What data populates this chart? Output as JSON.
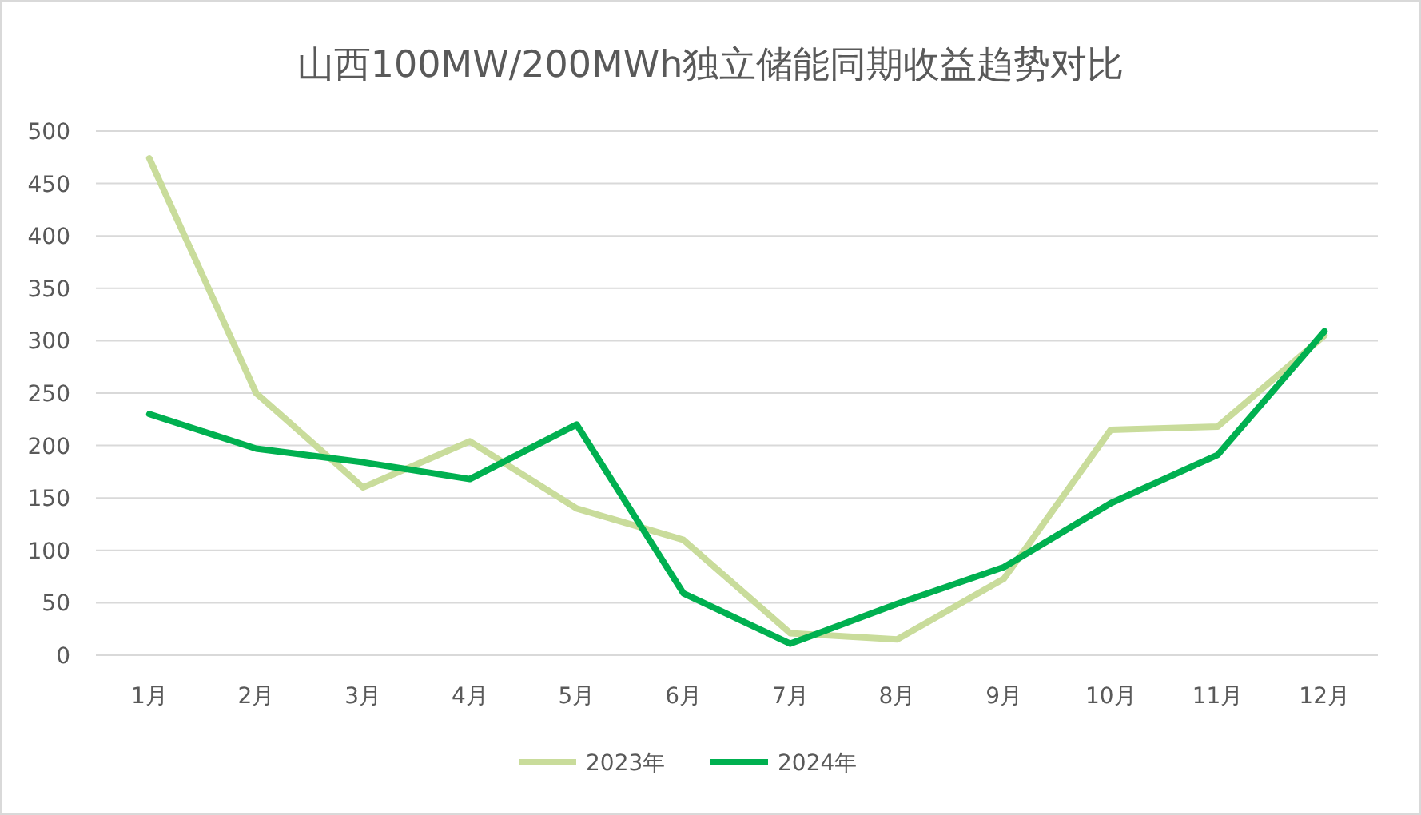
{
  "chart_data": {
    "type": "line",
    "title": "山西100MW/200MWh独立储能同期收益趋势对比",
    "categories": [
      "1月",
      "2月",
      "3月",
      "4月",
      "5月",
      "6月",
      "7月",
      "8月",
      "9月",
      "10月",
      "11月",
      "12月"
    ],
    "series": [
      {
        "name": "2023年",
        "color": "#c9dc9b",
        "values": [
          474,
          250,
          160,
          204,
          140,
          110,
          21,
          15,
          73,
          215,
          218,
          305
        ]
      },
      {
        "name": "2024年",
        "color": "#00b050",
        "values": [
          230,
          197,
          184,
          168,
          220,
          59,
          11,
          49,
          84,
          145,
          191,
          309
        ]
      }
    ],
    "ylim": [
      0,
      500
    ],
    "yticks": [
      0,
      50,
      100,
      150,
      200,
      250,
      300,
      350,
      400,
      450,
      500
    ],
    "grid": "y",
    "legend": "bottom",
    "marker": "none",
    "line_style": "solid"
  }
}
